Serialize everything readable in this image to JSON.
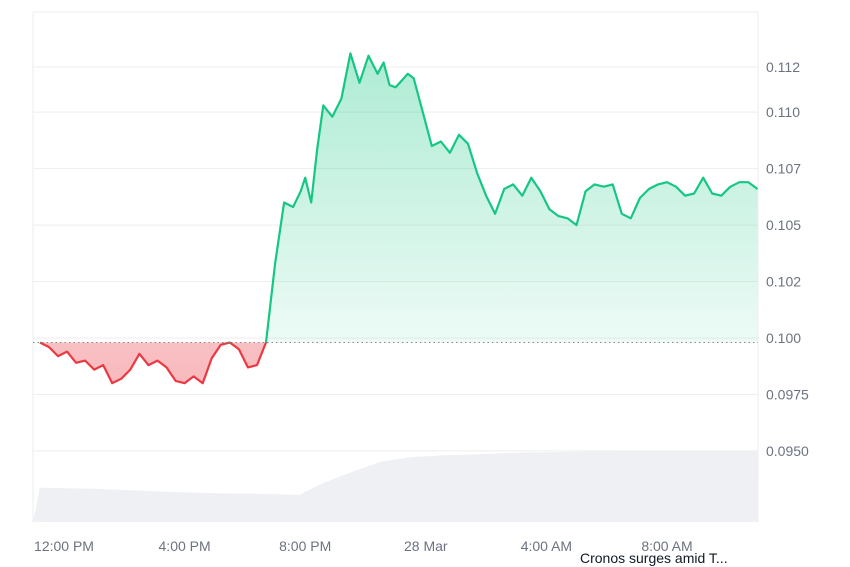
{
  "caption": "Cronos surges amid T...",
  "colors": {
    "up": "#16c784",
    "down": "#ea3943",
    "grid": "#eeeeee",
    "volume": "#eef0f3",
    "baseline": "#888888"
  },
  "chart_data": {
    "type": "area",
    "title": "",
    "xlabel": "",
    "ylabel": "",
    "baseline": 0.0998,
    "ylim": [
      0.0935,
      0.1145
    ],
    "xlim": [
      11.2,
      35.1
    ],
    "grid": true,
    "y_ticks": [
      {
        "value": 0.112,
        "label": "0.112"
      },
      {
        "value": 0.11,
        "label": "0.110"
      },
      {
        "value": 0.1075,
        "label": "0.107"
      },
      {
        "value": 0.105,
        "label": "0.105"
      },
      {
        "value": 0.1025,
        "label": "0.102"
      },
      {
        "value": 0.1,
        "label": "0.100"
      },
      {
        "value": 0.0975,
        "label": "0.0975"
      },
      {
        "value": 0.095,
        "label": "0.0950"
      }
    ],
    "x_ticks": [
      {
        "value": 12,
        "label": "12:00 PM"
      },
      {
        "value": 16,
        "label": "4:00 PM"
      },
      {
        "value": 20,
        "label": "8:00 PM"
      },
      {
        "value": 24,
        "label": "28 Mar"
      },
      {
        "value": 28,
        "label": "4:00 AM"
      },
      {
        "value": 32,
        "label": "8:00 AM"
      }
    ],
    "series": [
      {
        "x": [
          11.2,
          11.5,
          11.8,
          12.1,
          12.4,
          12.7,
          13.0,
          13.3,
          13.6,
          13.9,
          14.2,
          14.5,
          14.8,
          15.1,
          15.4,
          15.7,
          16.0,
          16.3,
          16.6,
          16.9,
          17.2,
          17.5,
          17.8,
          18.1,
          18.4,
          18.7,
          19.0,
          19.3,
          19.6,
          19.85,
          20.0,
          20.2,
          20.4,
          20.6,
          20.9,
          21.2,
          21.5,
          21.8,
          22.1,
          22.4,
          22.6,
          22.8,
          23.0,
          23.2,
          23.4,
          23.6,
          23.9,
          24.2,
          24.5,
          24.8,
          25.1,
          25.4,
          25.7,
          26.0,
          26.3,
          26.6,
          26.9,
          27.2,
          27.5,
          27.8,
          28.1,
          28.4,
          28.7,
          29.0,
          29.3,
          29.6,
          29.9,
          30.2,
          30.5,
          30.8,
          31.1,
          31.4,
          31.7,
          32.0,
          32.3,
          32.6,
          32.9,
          33.2,
          33.5,
          33.8,
          34.1,
          34.4,
          34.7,
          35.0
        ],
        "y": [
          0.0998,
          0.0996,
          0.0992,
          0.0994,
          0.0989,
          0.099,
          0.0986,
          0.0988,
          0.098,
          0.0982,
          0.0986,
          0.0993,
          0.0988,
          0.099,
          0.0987,
          0.0981,
          0.098,
          0.0983,
          0.098,
          0.0991,
          0.0997,
          0.0998,
          0.0995,
          0.0987,
          0.0988,
          0.0998,
          0.1033,
          0.106,
          0.1058,
          0.1065,
          0.1071,
          0.106,
          0.1084,
          0.1103,
          0.1098,
          0.1106,
          0.1126,
          0.1113,
          0.1125,
          0.1117,
          0.1122,
          0.1112,
          0.1111,
          0.1114,
          0.1117,
          0.1115,
          0.11,
          0.1085,
          0.1087,
          0.1082,
          0.109,
          0.1086,
          0.1073,
          0.1063,
          0.1055,
          0.1066,
          0.1068,
          0.1063,
          0.1071,
          0.1065,
          0.1057,
          0.1054,
          0.1053,
          0.105,
          0.1065,
          0.1068,
          0.1067,
          0.1068,
          0.1055,
          0.1053,
          0.1062,
          0.1066,
          0.1068,
          0.1069,
          0.1067,
          0.1063,
          0.1064,
          0.1071,
          0.1064,
          0.1063,
          0.1067,
          0.1069,
          0.1069,
          0.1066
        ]
      }
    ],
    "volume": {
      "x": [
        11.2,
        13,
        15,
        17,
        19,
        19.8,
        20.5,
        21.5,
        22.5,
        23.5,
        24.5,
        25.5,
        27,
        29,
        31,
        33,
        35
      ],
      "values": [
        0.38,
        0.37,
        0.34,
        0.32,
        0.31,
        0.3,
        0.42,
        0.55,
        0.67,
        0.72,
        0.74,
        0.75,
        0.77,
        0.78,
        0.79,
        0.79,
        0.79
      ]
    }
  }
}
